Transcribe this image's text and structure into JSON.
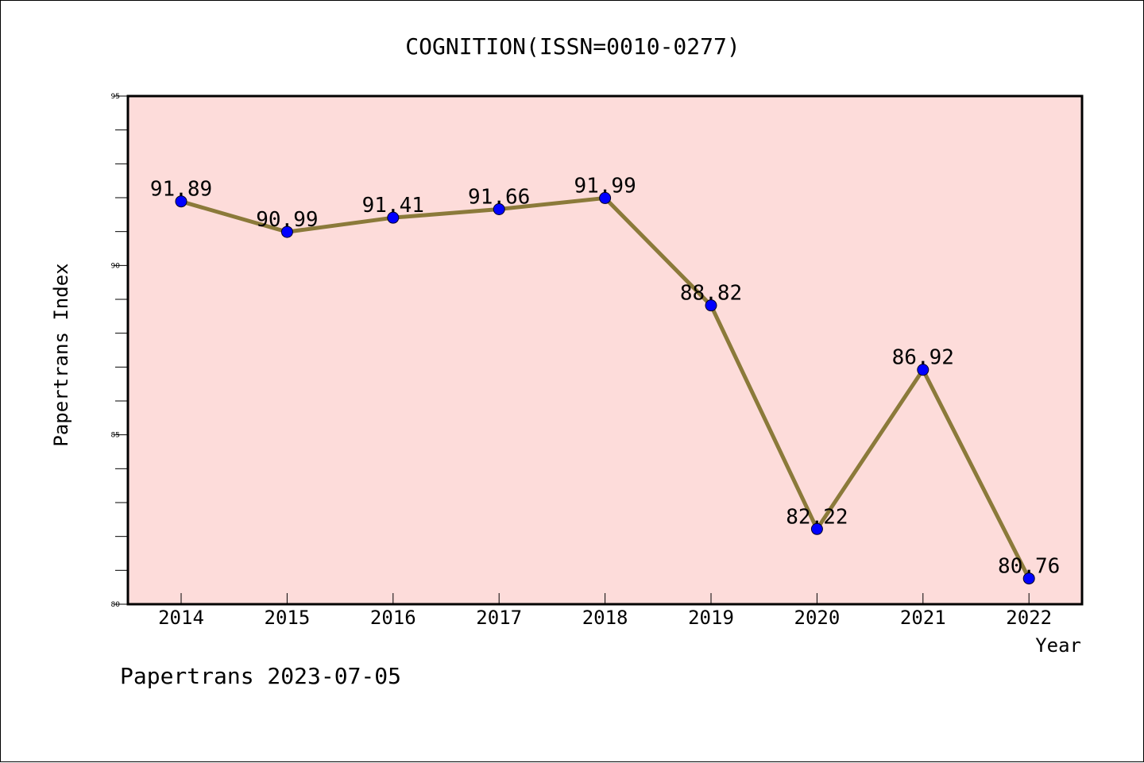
{
  "chart_data": {
    "type": "line",
    "title": "COGNITION(ISSN=0010-0277)",
    "xlabel": "Year",
    "ylabel": "Papertrans Index",
    "categories": [
      "2014",
      "2015",
      "2016",
      "2017",
      "2018",
      "2019",
      "2020",
      "2021",
      "2022"
    ],
    "series": [
      {
        "values": [
          91.89,
          90.99,
          91.41,
          91.66,
          91.99,
          88.82,
          82.22,
          86.92,
          80.76
        ],
        "labels": [
          "91.89",
          "90.99",
          "91.41",
          "91.66",
          "91.99",
          "88.82",
          "82.22",
          "86.92",
          "80.76"
        ],
        "line_color": "#8B7A3A",
        "marker_color": "#0000FF"
      }
    ],
    "ylim": [
      80,
      95
    ],
    "yticks": [
      "80",
      "85",
      "90",
      "95"
    ],
    "plot_background": "#FDDCDA",
    "grid": false,
    "legend": "none"
  },
  "footer": {
    "text": "Papertrans 2023-07-05"
  }
}
